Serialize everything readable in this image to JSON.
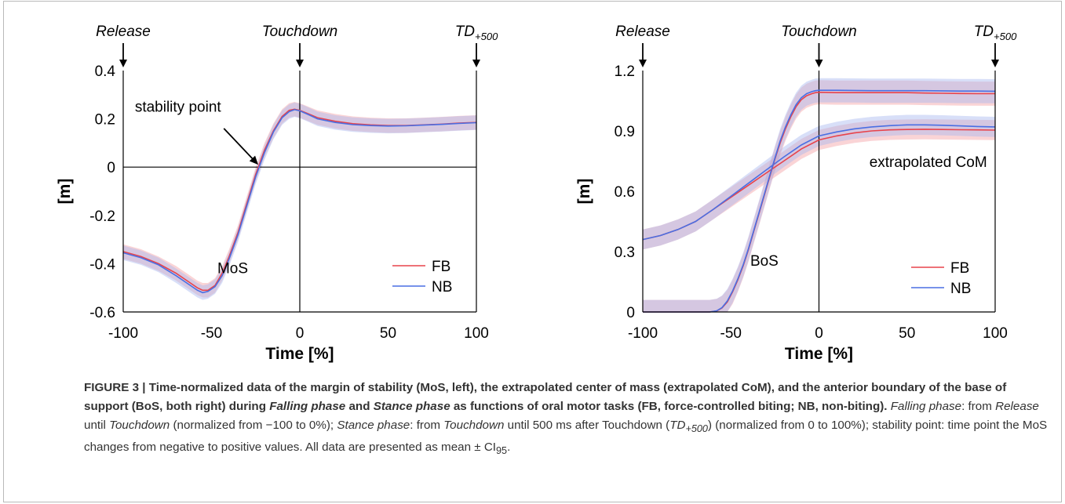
{
  "chart_data": [
    {
      "type": "line",
      "title": "",
      "xlabel": "Time [%]",
      "ylabel": "[m]",
      "xlim": [
        -100,
        100
      ],
      "ylim": [
        -0.6,
        0.4
      ],
      "xticks": [
        -100,
        -50,
        0,
        50,
        100
      ],
      "xtick_labels": [
        "-100",
        "-50",
        "0",
        "50",
        "100"
      ],
      "yticks": [
        -0.6,
        -0.4,
        -0.2,
        0,
        0.2,
        0.4
      ],
      "ytick_labels": [
        "-0.6",
        "-0.4",
        "-0.2",
        "0",
        "0.2",
        "0.4"
      ],
      "vline": 0,
      "hline": 0,
      "grid": false,
      "legend": "bottom-right",
      "phase_labels": [
        {
          "x": -100,
          "text": "Release"
        },
        {
          "x": 0,
          "text": "Touchdown"
        },
        {
          "x": 100,
          "text": "TD",
          "sub": "+500"
        }
      ],
      "annotations": [
        {
          "text": "stability point",
          "x": -23,
          "y": 0
        },
        {
          "text": "MoS",
          "x": -38,
          "y": -0.44
        }
      ],
      "series": [
        {
          "name": "FB",
          "color": "#e8434b",
          "band_color": "#f4a0a4",
          "ci": 0.03,
          "x": [
            -100,
            -90,
            -80,
            -70,
            -62,
            -58,
            -55,
            -52,
            -48,
            -44,
            -40,
            -35,
            -30,
            -25,
            -20,
            -15,
            -10,
            -6,
            -3,
            0,
            5,
            10,
            20,
            30,
            40,
            50,
            60,
            70,
            80,
            90,
            100
          ],
          "y": [
            -0.35,
            -0.37,
            -0.4,
            -0.44,
            -0.48,
            -0.5,
            -0.51,
            -0.51,
            -0.49,
            -0.44,
            -0.37,
            -0.27,
            -0.15,
            -0.03,
            0.07,
            0.15,
            0.21,
            0.235,
            0.24,
            0.235,
            0.22,
            0.205,
            0.19,
            0.18,
            0.175,
            0.172,
            0.172,
            0.175,
            0.178,
            0.182,
            0.185
          ]
        },
        {
          "name": "NB",
          "color": "#4a6fe3",
          "band_color": "#a8b9f0",
          "ci": 0.03,
          "x": [
            -100,
            -90,
            -80,
            -70,
            -62,
            -58,
            -55,
            -52,
            -48,
            -44,
            -40,
            -35,
            -30,
            -25,
            -20,
            -15,
            -10,
            -6,
            -3,
            0,
            5,
            10,
            20,
            30,
            40,
            50,
            60,
            70,
            80,
            90,
            100
          ],
          "y": [
            -0.355,
            -0.375,
            -0.405,
            -0.45,
            -0.49,
            -0.51,
            -0.52,
            -0.515,
            -0.495,
            -0.45,
            -0.38,
            -0.28,
            -0.16,
            -0.04,
            0.06,
            0.145,
            0.205,
            0.23,
            0.238,
            0.233,
            0.217,
            0.2,
            0.185,
            0.176,
            0.172,
            0.17,
            0.171,
            0.174,
            0.177,
            0.181,
            0.184
          ]
        }
      ]
    },
    {
      "type": "line",
      "title": "",
      "xlabel": "Time [%]",
      "ylabel": "[m]",
      "xlim": [
        -100,
        100
      ],
      "ylim": [
        0,
        1.2
      ],
      "xticks": [
        -100,
        -50,
        0,
        50,
        100
      ],
      "xtick_labels": [
        "-100",
        "-50",
        "0",
        "50",
        "100"
      ],
      "yticks": [
        0,
        0.3,
        0.6,
        0.9,
        1.2
      ],
      "ytick_labels": [
        "0",
        "0.3",
        "0.6",
        "0.9",
        "1.2"
      ],
      "vline": 0,
      "grid": false,
      "legend": "bottom-right",
      "phase_labels": [
        {
          "x": -100,
          "text": "Release"
        },
        {
          "x": 0,
          "text": "Touchdown"
        },
        {
          "x": 100,
          "text": "TD",
          "sub": "+500"
        }
      ],
      "annotations": [
        {
          "text": "extrapolated CoM",
          "x": 62,
          "y": 0.72
        },
        {
          "text": "BoS",
          "x": -31,
          "y": 0.23
        }
      ],
      "series": [
        {
          "name": "FB",
          "color": "#e8434b",
          "band_color": "#f4a0a4",
          "ci": 0.05,
          "x": [
            -100,
            -90,
            -80,
            -70,
            -60,
            -50,
            -40,
            -30,
            -20,
            -10,
            0,
            10,
            20,
            30,
            40,
            50,
            60,
            70,
            80,
            90,
            100
          ],
          "y": [
            0.36,
            0.38,
            0.41,
            0.45,
            0.51,
            0.57,
            0.63,
            0.69,
            0.75,
            0.81,
            0.855,
            0.875,
            0.89,
            0.9,
            0.905,
            0.907,
            0.908,
            0.907,
            0.906,
            0.905,
            0.904
          ]
        },
        {
          "name": "NB",
          "color": "#4a6fe3",
          "band_color": "#a8b9f0",
          "ci": 0.05,
          "x": [
            -100,
            -90,
            -80,
            -70,
            -60,
            -50,
            -40,
            -30,
            -20,
            -10,
            0,
            10,
            20,
            30,
            40,
            50,
            60,
            70,
            80,
            90,
            100
          ],
          "y": [
            0.36,
            0.38,
            0.41,
            0.45,
            0.51,
            0.575,
            0.64,
            0.705,
            0.77,
            0.83,
            0.875,
            0.895,
            0.91,
            0.92,
            0.926,
            0.93,
            0.93,
            0.928,
            0.925,
            0.922,
            0.92
          ]
        },
        {
          "name": "FB",
          "color": "#e8434b",
          "band_color": "#f4a0a4",
          "ci": 0.06,
          "x": [
            -100,
            -90,
            -80,
            -70,
            -62,
            -58,
            -55,
            -52,
            -49,
            -46,
            -43,
            -40,
            -37,
            -34,
            -31,
            -28,
            -25,
            -22,
            -19,
            -16,
            -13,
            -10,
            -7,
            -4,
            -2,
            0,
            10,
            20,
            30,
            40,
            50,
            60,
            70,
            80,
            90,
            100
          ],
          "y": [
            0,
            0,
            0,
            0,
            0,
            0.005,
            0.02,
            0.05,
            0.1,
            0.16,
            0.23,
            0.31,
            0.4,
            0.49,
            0.58,
            0.67,
            0.76,
            0.84,
            0.91,
            0.97,
            1.02,
            1.055,
            1.075,
            1.085,
            1.09,
            1.092,
            1.09,
            1.09,
            1.09,
            1.09,
            1.09,
            1.088,
            1.087,
            1.086,
            1.085,
            1.085
          ]
        },
        {
          "name": "NB",
          "color": "#4a6fe3",
          "band_color": "#a8b9f0",
          "ci": 0.06,
          "x": [
            -100,
            -90,
            -80,
            -70,
            -62,
            -58,
            -55,
            -52,
            -49,
            -46,
            -43,
            -40,
            -37,
            -34,
            -31,
            -28,
            -25,
            -22,
            -19,
            -16,
            -13,
            -10,
            -7,
            -4,
            -2,
            0,
            10,
            20,
            30,
            40,
            50,
            60,
            70,
            80,
            90,
            100
          ],
          "y": [
            0,
            0,
            0,
            0,
            0,
            0.006,
            0.022,
            0.055,
            0.105,
            0.165,
            0.235,
            0.315,
            0.405,
            0.495,
            0.585,
            0.675,
            0.765,
            0.85,
            0.92,
            0.98,
            1.03,
            1.065,
            1.085,
            1.095,
            1.1,
            1.102,
            1.102,
            1.101,
            1.1,
            1.1,
            1.1,
            1.1,
            1.099,
            1.098,
            1.098,
            1.097
          ]
        }
      ]
    }
  ],
  "caption": {
    "bold_prefix": "FIGURE 3 | Time-normalized data of the margin of stability (MoS, left), the extrapolated center of mass (extrapolated CoM), and the anterior boundary of the base of support (BoS, both right) during ",
    "bold_it_1": "Falling phase",
    "bold_mid": " and ",
    "bold_it_2": "Stance phase",
    "bold_suffix": " as functions of oral motor tasks (FB, force-controlled biting; NB, non-biting).",
    "it_falling": "Falling phase",
    "t1": ": from ",
    "it_release": "Release",
    "t2": " until ",
    "it_touchdown1": "Touchdown",
    "t3": " (normalized from −100 to 0%); ",
    "it_stance": "Stance phase",
    "t4": ": from ",
    "it_touchdown2": "Touchdown",
    "t5": " until 500 ms after Touchdown (",
    "it_td": "TD",
    "it_td_sub": "+500",
    "t6": ") (normalized from 0 to 100%); stability point: time point the MoS changes from negative to positive values. All data are presented as mean ± CI",
    "ci_sub": "95",
    "t7": "."
  }
}
